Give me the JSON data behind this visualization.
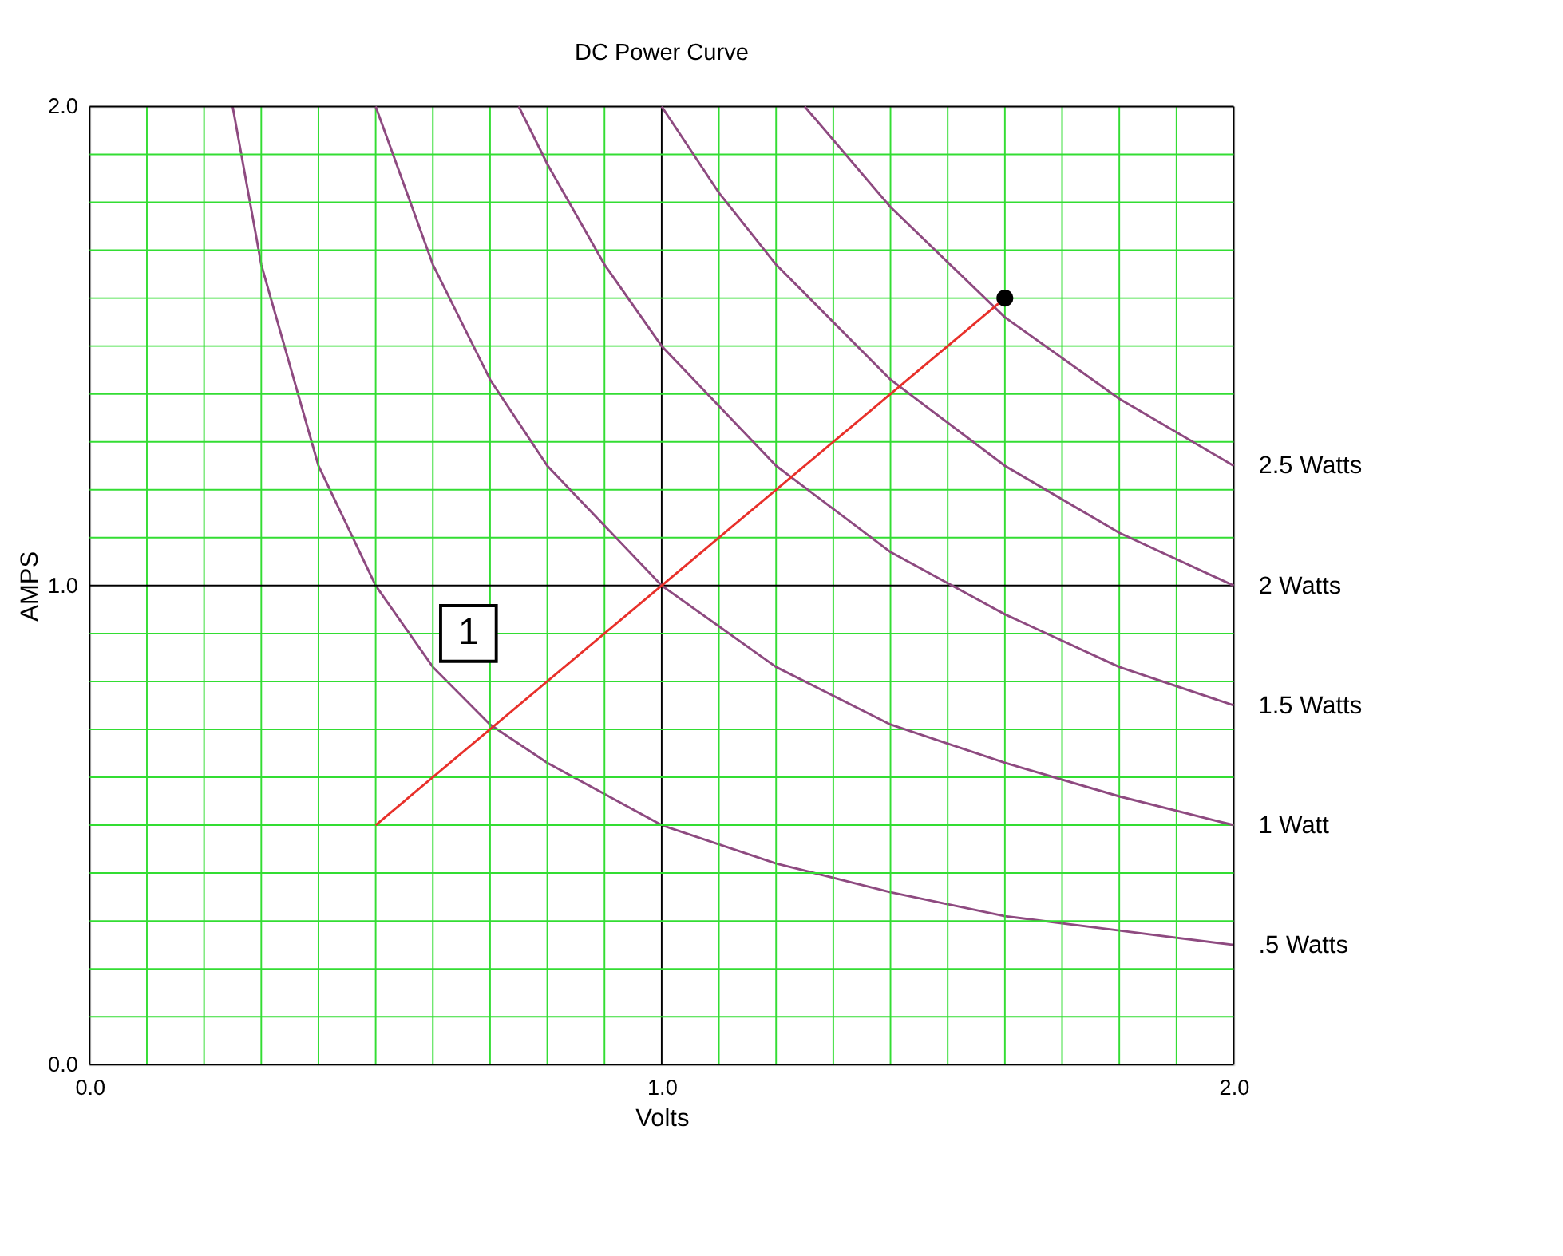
{
  "chart_data": {
    "type": "line",
    "title": "DC Power Curve",
    "xlabel": "Volts",
    "ylabel": "AMPS",
    "xlim": [
      0,
      2
    ],
    "ylim": [
      0,
      2
    ],
    "xticks": [
      {
        "value": 0,
        "label": "0.0"
      },
      {
        "value": 0.1,
        "label": null
      },
      {
        "value": 0.2,
        "label": null
      },
      {
        "value": 0.3,
        "label": null
      },
      {
        "value": 0.4,
        "label": null
      },
      {
        "value": 0.5,
        "label": null
      },
      {
        "value": 0.6,
        "label": null
      },
      {
        "value": 0.7,
        "label": null
      },
      {
        "value": 0.8,
        "label": null
      },
      {
        "value": 0.9,
        "label": null
      },
      {
        "value": 1,
        "label": "1.0"
      },
      {
        "value": 1.1,
        "label": null
      },
      {
        "value": 1.2,
        "label": null
      },
      {
        "value": 1.3,
        "label": null
      },
      {
        "value": 1.4,
        "label": null
      },
      {
        "value": 1.5,
        "label": null
      },
      {
        "value": 1.6,
        "label": null
      },
      {
        "value": 1.7,
        "label": null
      },
      {
        "value": 1.8,
        "label": null
      },
      {
        "value": 1.9,
        "label": null
      },
      {
        "value": 2,
        "label": "2.0"
      }
    ],
    "yticks": [
      {
        "value": 0,
        "label": "0.0"
      },
      {
        "value": 0.1,
        "label": null
      },
      {
        "value": 0.2,
        "label": null
      },
      {
        "value": 0.3,
        "label": null
      },
      {
        "value": 0.4,
        "label": null
      },
      {
        "value": 0.5,
        "label": null
      },
      {
        "value": 0.6,
        "label": null
      },
      {
        "value": 0.7,
        "label": null
      },
      {
        "value": 0.8,
        "label": null
      },
      {
        "value": 0.9,
        "label": null
      },
      {
        "value": 1,
        "label": "1.0"
      },
      {
        "value": 1.1,
        "label": null
      },
      {
        "value": 1.2,
        "label": null
      },
      {
        "value": 1.3,
        "label": null
      },
      {
        "value": 1.4,
        "label": null
      },
      {
        "value": 1.5,
        "label": null
      },
      {
        "value": 1.6,
        "label": null
      },
      {
        "value": 1.7,
        "label": null
      },
      {
        "value": 1.8,
        "label": null
      },
      {
        "value": 1.9,
        "label": null
      },
      {
        "value": 2,
        "label": "2.0"
      }
    ],
    "grid": true,
    "line_style": "solid",
    "marker": "none",
    "series": [
      {
        "name": ".5 Watts",
        "color": "#8e4a80",
        "x": [
          0.25,
          0.3,
          0.4,
          0.5,
          0.6,
          0.7,
          0.8,
          1.0,
          1.2,
          1.4,
          1.6,
          1.8,
          2.0
        ],
        "values": [
          2.0,
          1.67,
          1.25,
          1.0,
          0.83,
          0.71,
          0.63,
          0.5,
          0.42,
          0.36,
          0.31,
          0.28,
          0.25
        ]
      },
      {
        "name": "1 Watt",
        "color": "#8e4a80",
        "x": [
          0.5,
          0.6,
          0.7,
          0.8,
          1.0,
          1.2,
          1.4,
          1.6,
          1.8,
          2.0
        ],
        "values": [
          2.0,
          1.67,
          1.43,
          1.25,
          1.0,
          0.83,
          0.71,
          0.63,
          0.56,
          0.5
        ]
      },
      {
        "name": "1.5 Watts",
        "color": "#8e4a80",
        "x": [
          0.75,
          0.8,
          0.9,
          1.0,
          1.2,
          1.4,
          1.6,
          1.8,
          2.0
        ],
        "values": [
          2.0,
          1.88,
          1.67,
          1.5,
          1.25,
          1.07,
          0.94,
          0.83,
          0.75
        ]
      },
      {
        "name": "2 Watts",
        "color": "#8e4a80",
        "x": [
          1.0,
          1.1,
          1.2,
          1.4,
          1.6,
          1.8,
          2.0
        ],
        "values": [
          2.0,
          1.82,
          1.67,
          1.43,
          1.25,
          1.11,
          1.0
        ]
      },
      {
        "name": "2.5 Watts",
        "color": "#8e4a80",
        "x": [
          1.25,
          1.4,
          1.6,
          1.8,
          2.0
        ],
        "values": [
          2.0,
          1.79,
          1.56,
          1.39,
          1.25
        ]
      },
      {
        "type": "line",
        "color": "#e8302a",
        "x": [
          0.5,
          1.6
        ],
        "values": [
          0.5,
          1.6
        ]
      },
      {
        "type": "scatter",
        "marker": "circle",
        "color": "#000000",
        "x": [
          1.6
        ],
        "values": [
          1.6
        ]
      }
    ],
    "annotations": [
      "1"
    ]
  }
}
